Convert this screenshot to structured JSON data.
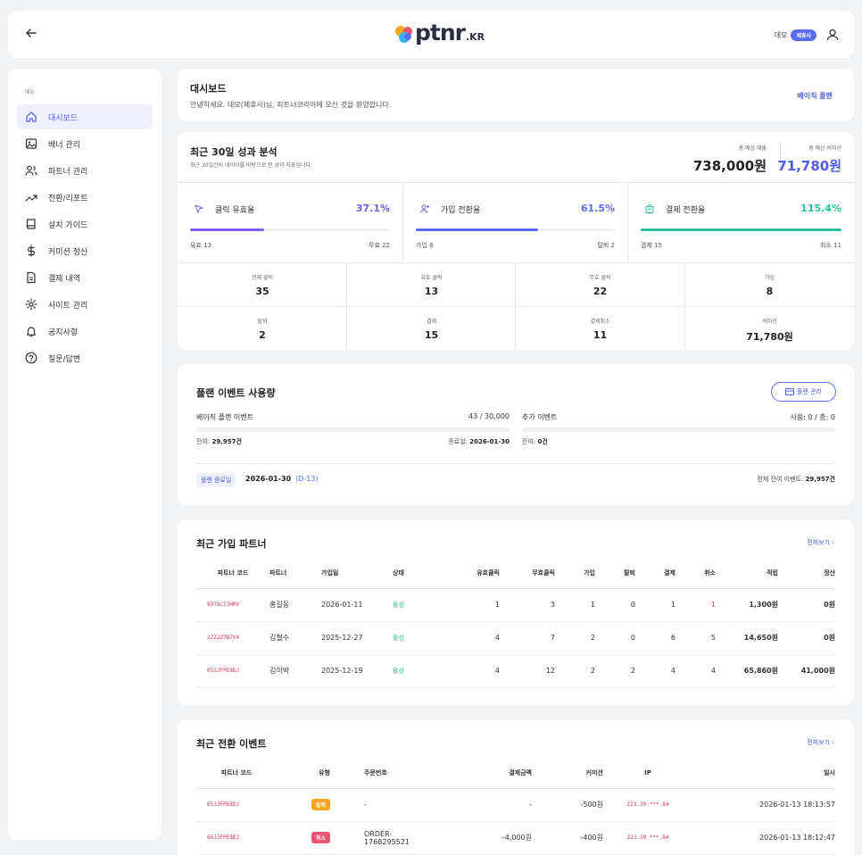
{
  "header": {
    "logo_text": "ptnr",
    "logo_suffix": ".KR",
    "user_name": "데모",
    "user_badge": "제휴사"
  },
  "sidebar": {
    "heading": "메뉴",
    "items": [
      {
        "label": "대시보드",
        "icon": "home-icon"
      },
      {
        "label": "배너 관리",
        "icon": "image-icon"
      },
      {
        "label": "파트너 관리",
        "icon": "users-icon"
      },
      {
        "label": "전환/리포트",
        "icon": "trend-icon"
      },
      {
        "label": "설치 가이드",
        "icon": "book-icon"
      },
      {
        "label": "커미션 정산",
        "icon": "dollar-icon"
      },
      {
        "label": "결제 내역",
        "icon": "document-icon"
      },
      {
        "label": "사이트 관리",
        "icon": "gear-icon"
      },
      {
        "label": "공지사항",
        "icon": "bell-icon"
      },
      {
        "label": "질문/답변",
        "icon": "question-icon"
      }
    ]
  },
  "dashboard": {
    "title": "대시보드",
    "subtitle": "안녕하세요. 데모(제휴사)님, 파트너코리아에 오신 것을 환영합니다.",
    "plan_link": "베이직 플랜"
  },
  "analysis": {
    "title": "최근 30일 성과 분석",
    "subtitle": "최근 30일간의 데이터를 바탕으로 한 성과 지표입니다.",
    "revenue_label": "총 예상 매출",
    "revenue_value": "738,000원",
    "commission_label": "총 예상 커미션",
    "commission_value": "71,780원",
    "rates": [
      {
        "label": "클릭 유효율",
        "value": "37.1%",
        "fraction": 0.371,
        "left": "유효 13",
        "right": "무효 22",
        "color": "#7c5cf0",
        "icon": "cursor-icon"
      },
      {
        "label": "가입 전환율",
        "value": "61.5%",
        "fraction": 0.615,
        "left": "가입 8",
        "right": "탈퇴 2",
        "color": "#5b6cf0",
        "icon": "user-plus-icon"
      },
      {
        "label": "결제 전환율",
        "value": "115.4%",
        "fraction": 1.0,
        "left": "결제 15",
        "right": "취소 11",
        "color": "#2bbfa0",
        "icon": "cart-icon"
      }
    ],
    "stats": [
      {
        "label": "전체 클릭",
        "value": "35"
      },
      {
        "label": "유효 클릭",
        "value": "13"
      },
      {
        "label": "무효 클릭",
        "value": "22"
      },
      {
        "label": "가입",
        "value": "8"
      },
      {
        "label": "탈퇴",
        "value": "2"
      },
      {
        "label": "결제",
        "value": "15"
      },
      {
        "label": "결제취소",
        "value": "11"
      },
      {
        "label": "커미션",
        "value": "71,780원"
      }
    ]
  },
  "plan": {
    "title": "플랜 이벤트 사용량",
    "manage_button": "플랜 관리",
    "basic_label": "베이직 플랜 이벤트",
    "basic_usage": "43 / 30,000",
    "basic_remaining_label": "잔여: ",
    "basic_remaining": "29,957건",
    "end_label": "종료일: ",
    "end_value": "2026-01-30",
    "extra_label": "추가 이벤트",
    "extra_usage": "사용: 0 / 총: 0",
    "extra_remaining_label": "잔여: ",
    "extra_remaining": "0건",
    "end_badge": "플랜 종료일",
    "end_date": "2026-01-30",
    "dday": "(D-13)",
    "total_label": "전체 잔여 이벤트: ",
    "total_value": "29,957건"
  },
  "partners": {
    "title": "최근 가입 파트너",
    "more": "전체보기 ›",
    "columns": [
      "파트너 코드",
      "파트너",
      "가입일",
      "상태",
      "유효클릭",
      "무효클릭",
      "가입",
      "탈퇴",
      "결제",
      "취소",
      "적립",
      "정산"
    ],
    "rows": [
      [
        "93T8C7JHRV",
        "홍길동",
        "2026-01-11",
        "활성",
        "1",
        "3",
        "1",
        "0",
        "1",
        "1",
        "1,300원",
        "0원"
      ],
      [
        "2ZZ2Z7B7V4",
        "김철수",
        "2025-12-27",
        "활성",
        "4",
        "7",
        "2",
        "0",
        "6",
        "5",
        "14,650원",
        "0원"
      ],
      [
        "653JFPE8DJ",
        "김이박",
        "2025-12-19",
        "활성",
        "4",
        "12",
        "2",
        "2",
        "4",
        "4",
        "65,860원",
        "41,000원"
      ]
    ]
  },
  "events": {
    "title": "최근 전환 이벤트",
    "more": "전체보기 ›",
    "columns": [
      "파트너 코드",
      "유형",
      "주문번호",
      "결제금액",
      "커미션",
      "IP",
      "일시"
    ],
    "rows": [
      {
        "code": "653JFPE8DJ",
        "type": "탈퇴",
        "type_color": "#f5a623",
        "order": "-",
        "amount": "-",
        "commission": "-500원",
        "ip": "223.39.***.84",
        "time": "2026-01-13 18:13:57"
      },
      {
        "code": "653JFPE8DJ",
        "type": "취소",
        "type_color": "#e8546f",
        "order": "ORDER-1768295521",
        "amount": "-4,000원",
        "commission": "-400원",
        "ip": "223.39.***.84",
        "time": "2026-01-13 18:12:47"
      }
    ]
  }
}
